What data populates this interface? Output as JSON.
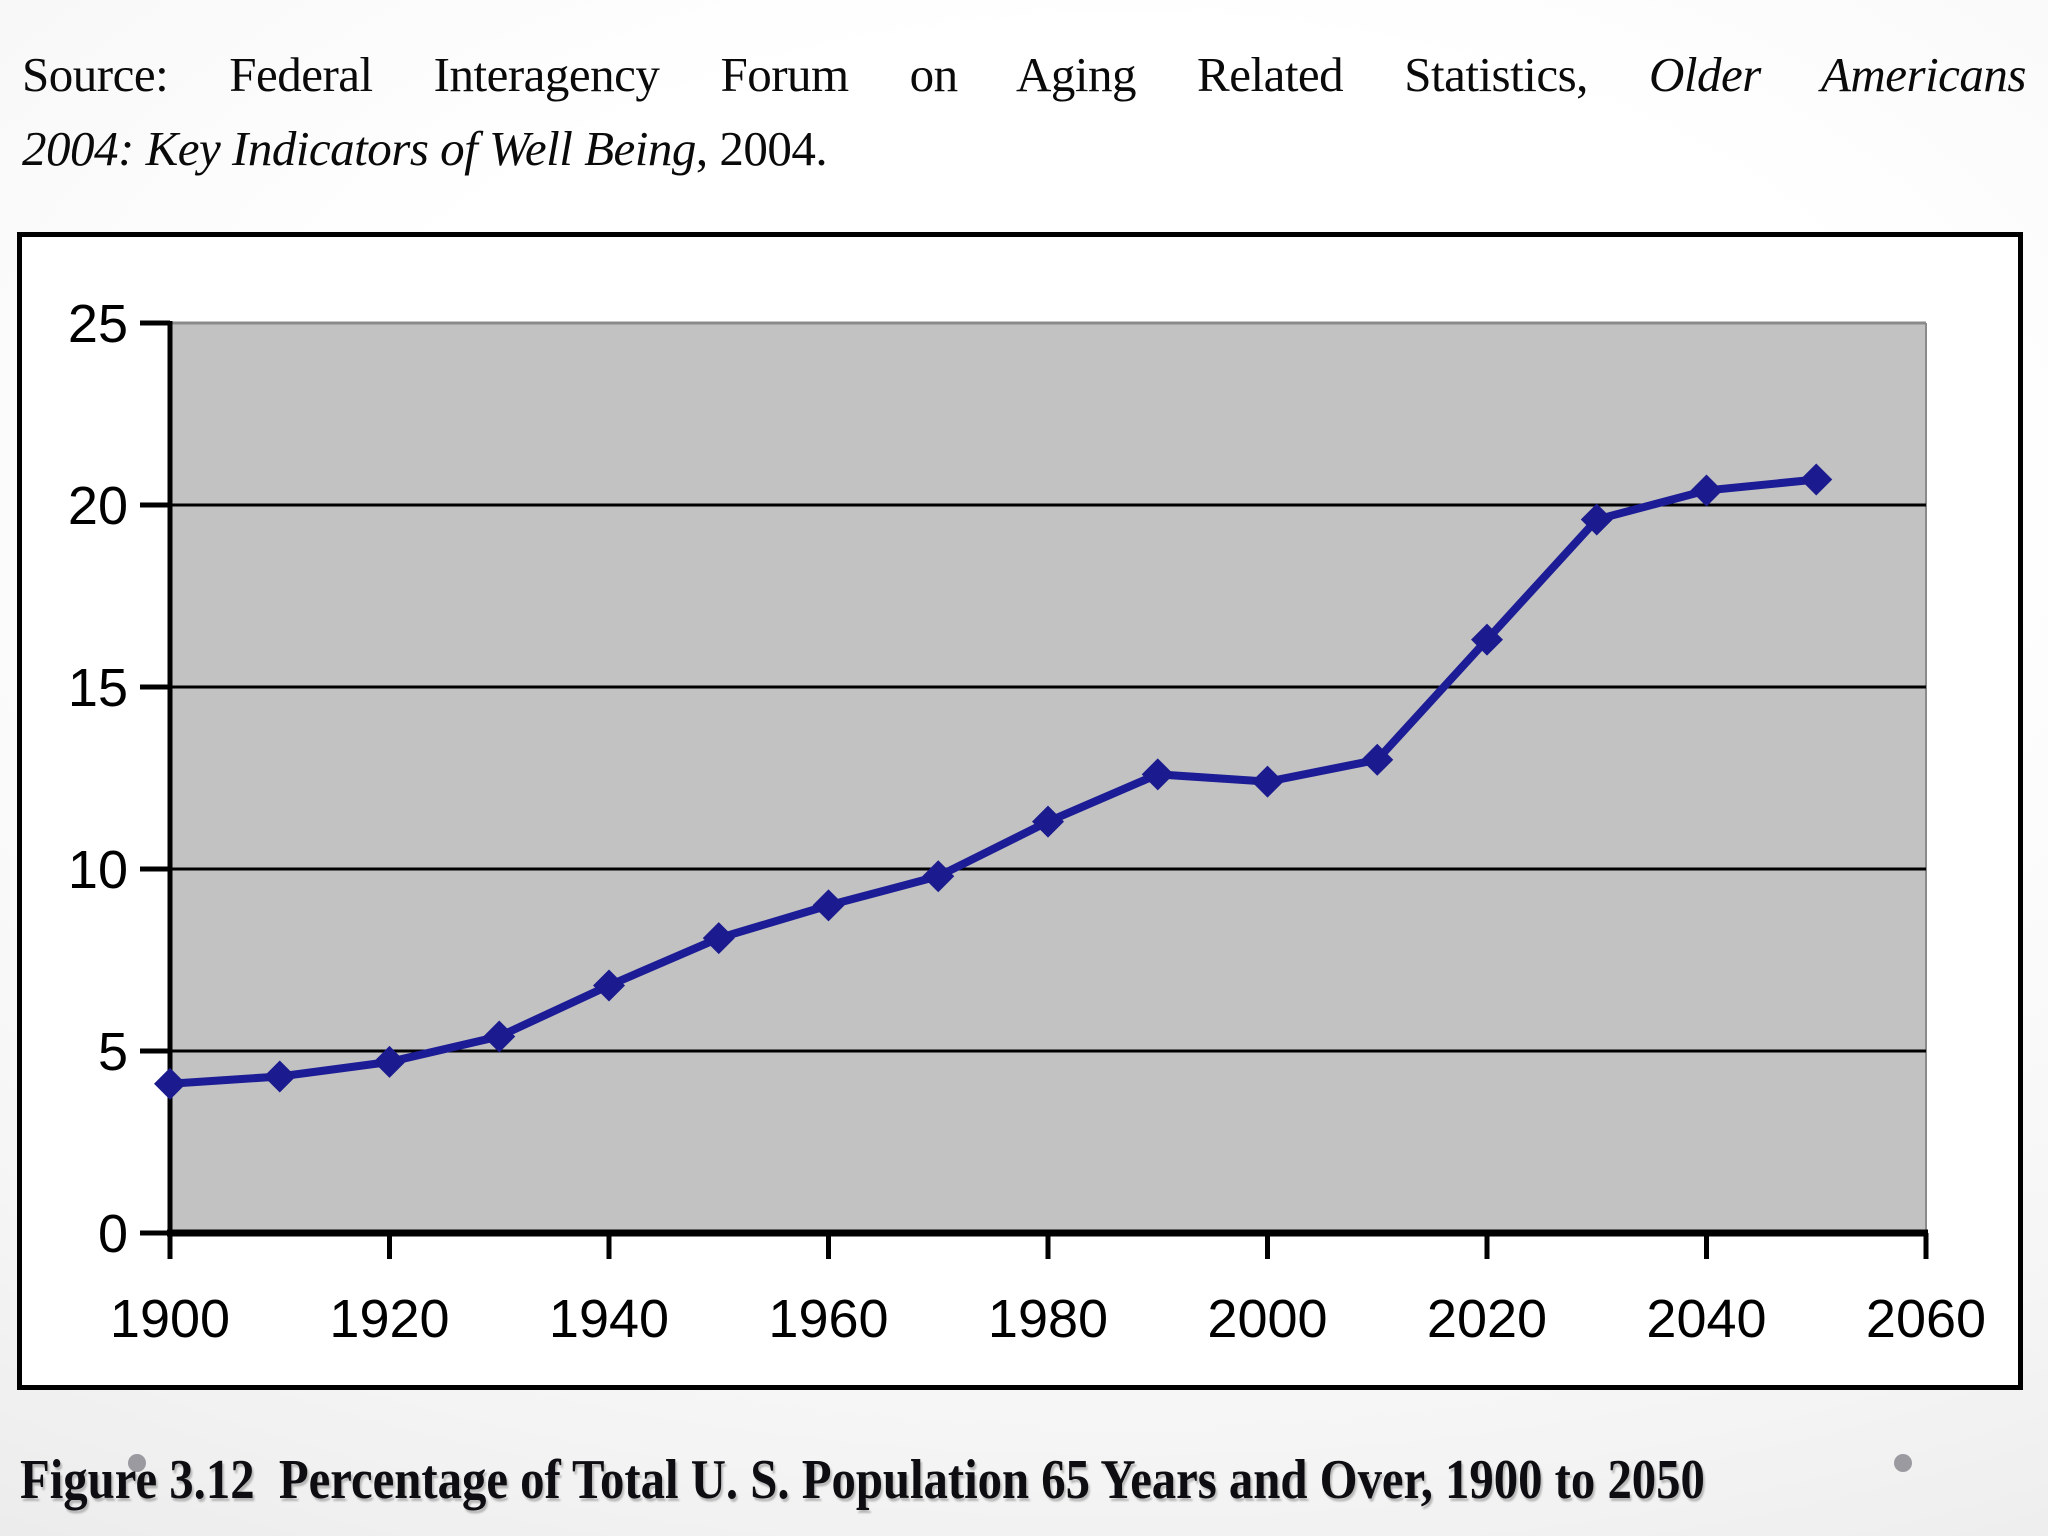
{
  "source": {
    "line1_regular": "Source: Federal Interagency Forum on Aging Related Statistics,",
    "line1_italic": "Older Americans",
    "line2_italic": "2004: Key Indicators of Well Being",
    "line2_regular": ", 2004."
  },
  "caption": "Figure 3.12  Percentage of Total U. S. Population 65 Years and Over, 1900 to 2050",
  "chart_data": {
    "type": "line",
    "title": "",
    "xlabel": "",
    "ylabel": "",
    "x": [
      1900,
      1910,
      1920,
      1930,
      1940,
      1950,
      1960,
      1970,
      1980,
      1990,
      2000,
      2010,
      2020,
      2030,
      2040,
      2050
    ],
    "values": [
      4.1,
      4.3,
      4.7,
      5.4,
      6.8,
      8.1,
      9.0,
      9.8,
      11.3,
      12.6,
      12.4,
      13.0,
      16.3,
      19.6,
      20.4,
      20.7
    ],
    "series_name": "Percentage of total U.S. population 65 years and over",
    "x_ticks": [
      1900,
      1920,
      1940,
      1960,
      1980,
      2000,
      2020,
      2040,
      2060
    ],
    "y_ticks": [
      0,
      5,
      10,
      15,
      20,
      25
    ],
    "xlim": [
      1900,
      2060
    ],
    "ylim": [
      0,
      25
    ],
    "grid": "horizontal",
    "legend": "none",
    "marker": "diamond",
    "colors": {
      "line": "#1c1c96",
      "marker": "#1b1b8f",
      "plot_bg": "#c2c2c2",
      "grid": "#000000",
      "plot_top_edge": "#8a8a8a",
      "axis": "#000000"
    }
  }
}
